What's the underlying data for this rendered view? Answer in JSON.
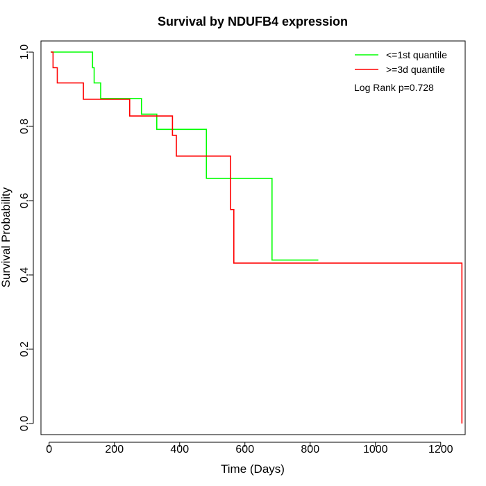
{
  "chart_data": {
    "type": "line",
    "title": "Survival by NDUFB4 expression",
    "xlabel": "Time (Days)",
    "ylabel": "Survival Probability",
    "xlim": [
      -25,
      1275
    ],
    "ylim": [
      -0.03,
      1.03
    ],
    "x_ticks": [
      0,
      200,
      400,
      600,
      800,
      1000,
      1200
    ],
    "y_ticks": [
      0.0,
      0.2,
      0.4,
      0.6,
      0.8,
      1.0
    ],
    "x_tick_labels": [
      "0",
      "200",
      "400",
      "600",
      "800",
      "1000",
      "1200"
    ],
    "y_tick_labels": [
      "0.0",
      "0.2",
      "0.4",
      "0.6",
      "0.8",
      "1.0"
    ],
    "grid": false,
    "legend_position": "top-right",
    "annotation": "Log Rank p=0.728",
    "series": [
      {
        "name": "<=1st quantile",
        "color": "#00ff00",
        "step": true,
        "points": [
          [
            5,
            1.0
          ],
          [
            133,
            1.0
          ],
          [
            133,
            0.958
          ],
          [
            138,
            0.958
          ],
          [
            138,
            0.917
          ],
          [
            158,
            0.917
          ],
          [
            158,
            0.875
          ],
          [
            283,
            0.875
          ],
          [
            283,
            0.833
          ],
          [
            330,
            0.833
          ],
          [
            330,
            0.792
          ],
          [
            482,
            0.792
          ],
          [
            482,
            0.66
          ],
          [
            683,
            0.66
          ],
          [
            683,
            0.44
          ],
          [
            825,
            0.44
          ]
        ]
      },
      {
        "name": ">=3d quantile",
        "color": "#ff0000",
        "step": true,
        "points": [
          [
            5,
            1.0
          ],
          [
            12,
            1.0
          ],
          [
            12,
            0.958
          ],
          [
            25,
            0.958
          ],
          [
            25,
            0.917
          ],
          [
            105,
            0.917
          ],
          [
            105,
            0.873
          ],
          [
            247,
            0.873
          ],
          [
            247,
            0.828
          ],
          [
            378,
            0.828
          ],
          [
            378,
            0.776
          ],
          [
            390,
            0.776
          ],
          [
            390,
            0.72
          ],
          [
            556,
            0.72
          ],
          [
            556,
            0.576
          ],
          [
            566,
            0.576
          ],
          [
            566,
            0.432
          ],
          [
            1265,
            0.432
          ],
          [
            1265,
            0.0
          ]
        ]
      }
    ]
  }
}
